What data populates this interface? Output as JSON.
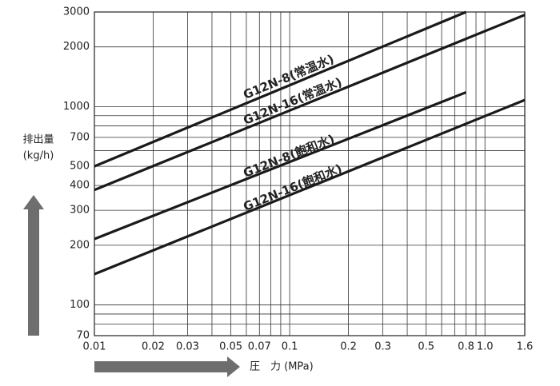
{
  "chart_data": {
    "type": "line",
    "xlabel": "圧　力 (MPa)",
    "ylabel": "排出量",
    "yunit": "(kg/h)",
    "xscale": "log",
    "yscale": "log",
    "grid": true,
    "xlim": [
      0.01,
      1.6
    ],
    "ylim": [
      70,
      3000
    ],
    "xticks": [
      0.01,
      0.02,
      0.03,
      0.05,
      0.07,
      0.1,
      0.2,
      0.3,
      0.5,
      0.8,
      {
        "value": 1.0,
        "label": "1.0"
      },
      1.6
    ],
    "yticks": [
      70,
      100,
      200,
      300,
      400,
      500,
      700,
      1000,
      2000,
      3000
    ],
    "xgrid_minor": [
      0.04,
      0.06,
      0.08,
      0.09,
      0.4,
      0.6,
      0.7,
      0.9
    ],
    "ygrid_minor": [
      80,
      90,
      600,
      800,
      900
    ],
    "series": [
      {
        "name": "G12N-8(常温水)",
        "color": "#1a1a1a",
        "x": [
          0.01,
          0.8
        ],
        "values": [
          500,
          3000
        ]
      },
      {
        "name": "G12N-16(常温水)",
        "color": "#1a1a1a",
        "x": [
          0.01,
          1.6
        ],
        "values": [
          380,
          2900
        ]
      },
      {
        "name": "G12N-8(飽和水)",
        "color": "#1a1a1a",
        "x": [
          0.01,
          0.8
        ],
        "values": [
          215,
          1180
        ]
      },
      {
        "name": "G12N-16(飽和水)",
        "color": "#1a1a1a",
        "x": [
          0.01,
          1.6
        ],
        "values": [
          143,
          1080
        ]
      }
    ]
  }
}
